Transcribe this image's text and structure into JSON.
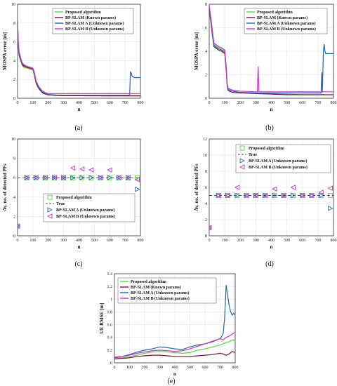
{
  "colors": {
    "proposed": "#55dd33",
    "known": "#7a1426",
    "bp_a": "#2266bb",
    "bp_b": "#cc33cc",
    "true": "#444444",
    "dot": "#8899dd"
  },
  "chart_data": [
    {
      "id": "a",
      "type": "line",
      "caption": "(a)",
      "xlabel": "n",
      "ylabel": "MOSPA error [m]",
      "xlim": [
        0,
        800
      ],
      "ylim": [
        0,
        10
      ],
      "xticks": [
        0,
        100,
        200,
        300,
        400,
        500,
        600,
        700,
        800
      ],
      "yticks": [
        0,
        2,
        4,
        6,
        8,
        10
      ],
      "legend_pos": "top-center",
      "series": [
        {
          "name": "Proposed algorithm",
          "color_key": "proposed",
          "x": [
            0,
            5,
            10,
            20,
            30,
            40,
            60,
            80,
            100,
            110,
            120,
            130,
            140,
            150,
            160,
            170,
            180,
            190,
            200,
            250,
            300,
            400,
            500,
            600,
            700,
            800
          ],
          "y": [
            8.0,
            5.5,
            4.5,
            4.0,
            3.5,
            3.3,
            3.2,
            3.1,
            3.0,
            2.4,
            1.6,
            1.2,
            1.0,
            0.8,
            0.65,
            0.55,
            0.5,
            0.45,
            0.4,
            0.35,
            0.33,
            0.32,
            0.31,
            0.3,
            0.3,
            0.3
          ]
        },
        {
          "name": "BP-SLAM (Known params)",
          "color_key": "known",
          "x": [
            0,
            5,
            10,
            20,
            30,
            40,
            60,
            80,
            100,
            110,
            120,
            130,
            140,
            150,
            160,
            170,
            180,
            190,
            200,
            250,
            300,
            400,
            500,
            600,
            700,
            800
          ],
          "y": [
            8.2,
            5.6,
            4.6,
            4.1,
            3.6,
            3.4,
            3.3,
            3.2,
            3.1,
            2.5,
            1.7,
            1.3,
            1.0,
            0.8,
            0.6,
            0.5,
            0.45,
            0.4,
            0.35,
            0.3,
            0.28,
            0.27,
            0.26,
            0.25,
            0.25,
            0.25
          ]
        },
        {
          "name": "BP-SLAM A (Unknown params)",
          "color_key": "bp_a",
          "x": [
            0,
            5,
            10,
            20,
            30,
            40,
            60,
            80,
            100,
            110,
            120,
            130,
            140,
            150,
            160,
            170,
            180,
            190,
            200,
            250,
            300,
            400,
            500,
            600,
            700,
            720,
            730,
            735,
            740,
            745,
            750,
            760,
            780,
            800
          ],
          "y": [
            8.3,
            5.8,
            4.8,
            4.2,
            3.7,
            3.5,
            3.4,
            3.3,
            3.2,
            2.6,
            1.8,
            1.4,
            1.1,
            0.9,
            0.7,
            0.6,
            0.5,
            0.45,
            0.4,
            0.35,
            0.33,
            0.32,
            0.32,
            0.32,
            0.32,
            0.32,
            0.4,
            2.8,
            2.7,
            2.4,
            2.3,
            2.2,
            2.2,
            2.2
          ]
        },
        {
          "name": "BP-SLAM B (Unknown params)",
          "color_key": "bp_b",
          "x": [
            0,
            5,
            10,
            20,
            30,
            40,
            60,
            80,
            100,
            110,
            120,
            130,
            140,
            150,
            160,
            170,
            180,
            190,
            200,
            250,
            300,
            400,
            500,
            600,
            700,
            800
          ],
          "y": [
            8.4,
            6.0,
            5.0,
            4.3,
            3.8,
            3.6,
            3.4,
            3.3,
            3.2,
            2.7,
            1.9,
            1.5,
            1.2,
            1.0,
            0.8,
            0.7,
            0.6,
            0.55,
            0.5,
            0.5,
            0.5,
            0.5,
            0.5,
            0.5,
            0.5,
            0.5
          ]
        }
      ]
    },
    {
      "id": "b",
      "type": "line",
      "caption": "(b)",
      "xlabel": "n",
      "ylabel": "MOSPA error [m]",
      "xlim": [
        0,
        800
      ],
      "ylim": [
        0,
        8
      ],
      "xticks": [
        0,
        100,
        200,
        300,
        400,
        500,
        600,
        700,
        800
      ],
      "yticks": [
        0,
        2,
        4,
        6,
        8
      ],
      "legend_pos": "top-center",
      "series": [
        {
          "name": "Proposed algorithm",
          "color_key": "proposed",
          "x": [
            0,
            5,
            10,
            20,
            30,
            40,
            60,
            80,
            100,
            110,
            115,
            120,
            130,
            150,
            200,
            300,
            400,
            500,
            600,
            700,
            800
          ],
          "y": [
            7.5,
            7.0,
            6.5,
            5.5,
            4.6,
            4.5,
            4.3,
            4.2,
            4.0,
            2.5,
            1.2,
            0.8,
            0.7,
            0.6,
            0.5,
            0.45,
            0.4,
            0.35,
            0.3,
            0.3,
            0.3
          ]
        },
        {
          "name": "BP-SLAM (Known params)",
          "color_key": "known",
          "x": [
            0,
            5,
            10,
            20,
            30,
            40,
            60,
            80,
            100,
            110,
            115,
            120,
            130,
            150,
            200,
            300,
            400,
            500,
            600,
            700,
            800
          ],
          "y": [
            7.6,
            7.1,
            6.6,
            5.4,
            4.4,
            4.3,
            4.1,
            4.0,
            3.8,
            2.3,
            1.1,
            0.7,
            0.6,
            0.5,
            0.45,
            0.4,
            0.35,
            0.3,
            0.3,
            0.3,
            0.3
          ]
        },
        {
          "name": "BP-SLAM A (Unknown params)",
          "color_key": "bp_a",
          "x": [
            0,
            5,
            10,
            20,
            30,
            40,
            60,
            80,
            100,
            110,
            115,
            120,
            130,
            150,
            200,
            300,
            400,
            500,
            600,
            700,
            720,
            725,
            728,
            735,
            740,
            745,
            750,
            760,
            780,
            800
          ],
          "y": [
            7.8,
            7.3,
            6.8,
            5.6,
            4.5,
            4.4,
            4.2,
            4.1,
            3.9,
            2.4,
            1.2,
            0.8,
            0.7,
            0.6,
            0.5,
            0.45,
            0.45,
            0.45,
            0.45,
            0.45,
            0.45,
            2.2,
            0.5,
            4.0,
            4.6,
            4.0,
            3.8,
            3.8,
            3.8,
            3.8
          ]
        },
        {
          "name": "BP-SLAM B (Unknown params)",
          "color_key": "bp_b",
          "x": [
            0,
            5,
            10,
            20,
            30,
            40,
            60,
            80,
            100,
            110,
            115,
            120,
            130,
            150,
            200,
            300,
            310,
            315,
            320,
            400,
            500,
            600,
            700,
            800
          ],
          "y": [
            7.9,
            7.4,
            6.9,
            5.8,
            4.7,
            4.6,
            4.4,
            4.3,
            4.1,
            2.6,
            1.3,
            0.9,
            0.8,
            0.7,
            0.6,
            0.55,
            0.55,
            2.7,
            0.55,
            0.55,
            0.55,
            0.55,
            0.55,
            0.55
          ]
        }
      ]
    },
    {
      "id": "c",
      "type": "scatter",
      "caption": "(c)",
      "xlabel": "n",
      "ylabel": "Av. no. of detected PFs",
      "xlim": [
        0,
        800
      ],
      "ylim": [
        0,
        10
      ],
      "xticks": [
        0,
        100,
        200,
        300,
        400,
        500,
        600,
        700,
        800
      ],
      "yticks": [
        0,
        2,
        4,
        6,
        8,
        10
      ],
      "legend_pos": "bottom-center",
      "true_value": 6,
      "series": [
        {
          "name": "Proposed algorithm",
          "marker": "square",
          "color_key": "proposed",
          "x": [
            0,
            60,
            120,
            180,
            240,
            300,
            360,
            420,
            480,
            540,
            600,
            660,
            720,
            780
          ],
          "y": [
            1,
            6,
            6,
            6,
            6,
            6,
            6,
            6,
            6,
            6,
            6,
            6,
            6,
            6
          ]
        },
        {
          "name": "True",
          "marker": "dash",
          "color_key": "true",
          "x": [
            0,
            800
          ],
          "y": [
            6,
            6
          ]
        },
        {
          "name": "BP-SLAM A (Unknown params)",
          "marker": "triangle-right",
          "color_key": "bp_a",
          "x": [
            0,
            60,
            120,
            180,
            240,
            300,
            360,
            420,
            480,
            540,
            600,
            660,
            720,
            780
          ],
          "y": [
            1,
            6,
            6,
            6,
            6,
            6,
            6,
            6,
            6,
            6,
            6,
            6,
            6,
            4.8
          ]
        },
        {
          "name": "BP-SLAM B (Unknown params)",
          "marker": "triangle-left",
          "color_key": "bp_b",
          "x": [
            0,
            60,
            120,
            180,
            240,
            300,
            360,
            420,
            480,
            540,
            600,
            660,
            720,
            780
          ],
          "y": [
            1,
            6,
            6,
            6,
            6,
            6,
            7,
            6.9,
            6.8,
            6,
            6.8,
            6,
            6,
            5.8
          ]
        }
      ]
    },
    {
      "id": "d",
      "type": "scatter",
      "caption": "(d)",
      "xlabel": "n",
      "ylabel": "Av. no. of detected PFs",
      "xlim": [
        0,
        800
      ],
      "ylim": [
        0,
        12
      ],
      "xticks": [
        0,
        100,
        200,
        300,
        400,
        500,
        600,
        700,
        800
      ],
      "yticks": [
        0,
        2,
        4,
        6,
        8,
        10,
        12
      ],
      "legend_pos": "top-center",
      "true_value": 5,
      "series": [
        {
          "name": "Proposed algorithm",
          "marker": "square",
          "color_key": "proposed",
          "x": [
            0,
            60,
            120,
            180,
            240,
            300,
            360,
            420,
            480,
            540,
            600,
            660,
            720,
            780
          ],
          "y": [
            1,
            5,
            5,
            5,
            5,
            5,
            5,
            5,
            5,
            5,
            5,
            5,
            5,
            5
          ]
        },
        {
          "name": "True",
          "marker": "dash",
          "color_key": "true",
          "x": [
            0,
            800
          ],
          "y": [
            5,
            5
          ]
        },
        {
          "name": "BP-SLAM A (Unknown params)",
          "marker": "triangle-right",
          "color_key": "bp_a",
          "x": [
            0,
            60,
            120,
            180,
            240,
            300,
            360,
            420,
            480,
            540,
            600,
            660,
            720,
            780
          ],
          "y": [
            1,
            5,
            5,
            5,
            5,
            5,
            5,
            5,
            5,
            5,
            5,
            5,
            5,
            3.4
          ]
        },
        {
          "name": "BP-SLAM B (Unknown params)",
          "marker": "triangle-left",
          "color_key": "bp_b",
          "x": [
            0,
            60,
            120,
            180,
            240,
            300,
            360,
            420,
            480,
            540,
            600,
            660,
            720,
            780
          ],
          "y": [
            1,
            5,
            5,
            6,
            5,
            5,
            5,
            5.8,
            5,
            6,
            5,
            5,
            5.4,
            5.9
          ]
        }
      ]
    },
    {
      "id": "e",
      "type": "line",
      "caption": "(e)",
      "xlabel": "n",
      "ylabel": "UE RMSE [m]",
      "xlim": [
        0,
        800
      ],
      "ylim": [
        0,
        1.4
      ],
      "xticks": [
        0,
        100,
        200,
        300,
        400,
        500,
        600,
        700,
        800
      ],
      "yticks": [
        0,
        0.2,
        0.4,
        0.6,
        0.8,
        1,
        1.2,
        1.4
      ],
      "legend_pos": "top-left",
      "series": [
        {
          "name": "Proposed algorithm",
          "color_key": "proposed",
          "x": [
            0,
            50,
            100,
            150,
            200,
            250,
            300,
            350,
            400,
            450,
            500,
            550,
            600,
            650,
            700,
            720,
            740,
            760,
            780,
            800
          ],
          "y": [
            0.08,
            0.08,
            0.1,
            0.12,
            0.15,
            0.17,
            0.18,
            0.17,
            0.16,
            0.15,
            0.16,
            0.2,
            0.22,
            0.25,
            0.28,
            0.3,
            0.32,
            0.33,
            0.36,
            0.35
          ]
        },
        {
          "name": "BP-SLAM (Known params)",
          "color_key": "known",
          "x": [
            0,
            50,
            100,
            150,
            200,
            250,
            300,
            350,
            400,
            450,
            500,
            550,
            600,
            650,
            700,
            720,
            740,
            760,
            780,
            800
          ],
          "y": [
            0.06,
            0.07,
            0.08,
            0.1,
            0.11,
            0.12,
            0.12,
            0.11,
            0.1,
            0.1,
            0.1,
            0.11,
            0.12,
            0.13,
            0.15,
            0.14,
            0.12,
            0.14,
            0.18,
            0.16
          ]
        },
        {
          "name": "BP-SLAM A (Unknown params)",
          "color_key": "bp_a",
          "x": [
            0,
            50,
            100,
            150,
            200,
            250,
            300,
            350,
            400,
            450,
            500,
            550,
            600,
            650,
            700,
            720,
            730,
            740,
            750,
            760,
            770,
            780,
            790,
            800
          ],
          "y": [
            0.08,
            0.1,
            0.13,
            0.17,
            0.2,
            0.22,
            0.25,
            0.24,
            0.22,
            0.21,
            0.25,
            0.28,
            0.3,
            0.33,
            0.38,
            0.45,
            0.7,
            1.22,
            1.05,
            0.9,
            0.8,
            0.75,
            0.78,
            0.75
          ]
        },
        {
          "name": "BP-SLAM B (Unknown params)",
          "color_key": "bp_b",
          "x": [
            0,
            50,
            100,
            150,
            200,
            250,
            300,
            350,
            400,
            450,
            500,
            550,
            600,
            650,
            700,
            720,
            740,
            760,
            780,
            800
          ],
          "y": [
            0.09,
            0.1,
            0.12,
            0.15,
            0.17,
            0.19,
            0.2,
            0.19,
            0.18,
            0.19,
            0.22,
            0.26,
            0.3,
            0.34,
            0.38,
            0.36,
            0.4,
            0.42,
            0.45,
            0.48
          ]
        }
      ]
    }
  ]
}
